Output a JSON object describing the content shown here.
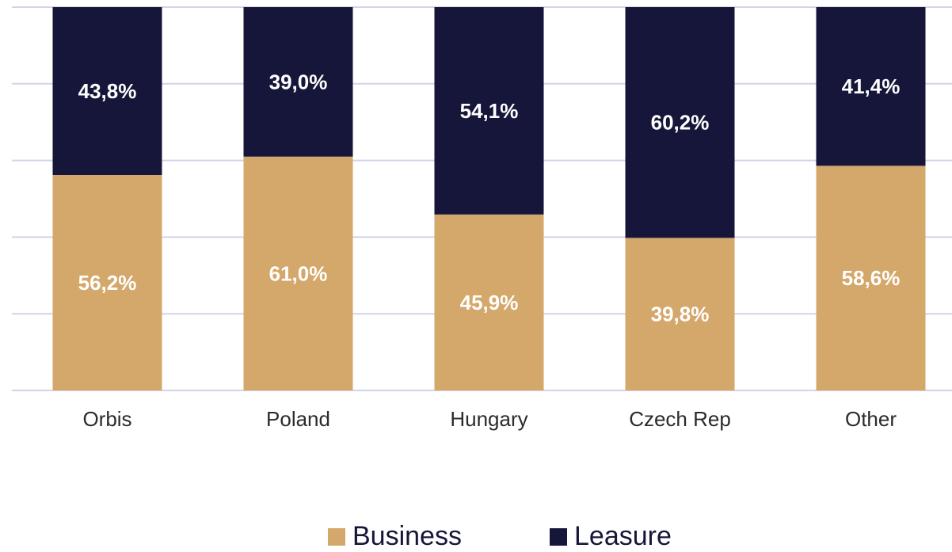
{
  "chart_data": {
    "type": "stacked_bar",
    "categories": [
      "Orbis",
      "Poland",
      "Hungary",
      "Czech Rep",
      "Other"
    ],
    "series": [
      {
        "name": "Business",
        "color": "#d4a76a",
        "values": [
          56.2,
          61.0,
          45.9,
          39.8,
          58.6
        ],
        "value_labels": [
          "56,2%",
          "61,0%",
          "45,9%",
          "39,8%",
          "58,6%"
        ]
      },
      {
        "name": "Leasure",
        "color": "#16163a",
        "values": [
          43.8,
          39.0,
          54.1,
          60.2,
          41.4
        ],
        "value_labels": [
          "43,8%",
          "39,0%",
          "54,1%",
          "60,2%",
          "41,4%"
        ]
      }
    ],
    "ylim": [
      0,
      100
    ],
    "yticks": [
      0,
      20,
      40,
      60,
      80,
      100
    ],
    "grid": true,
    "legend": "bottom"
  }
}
